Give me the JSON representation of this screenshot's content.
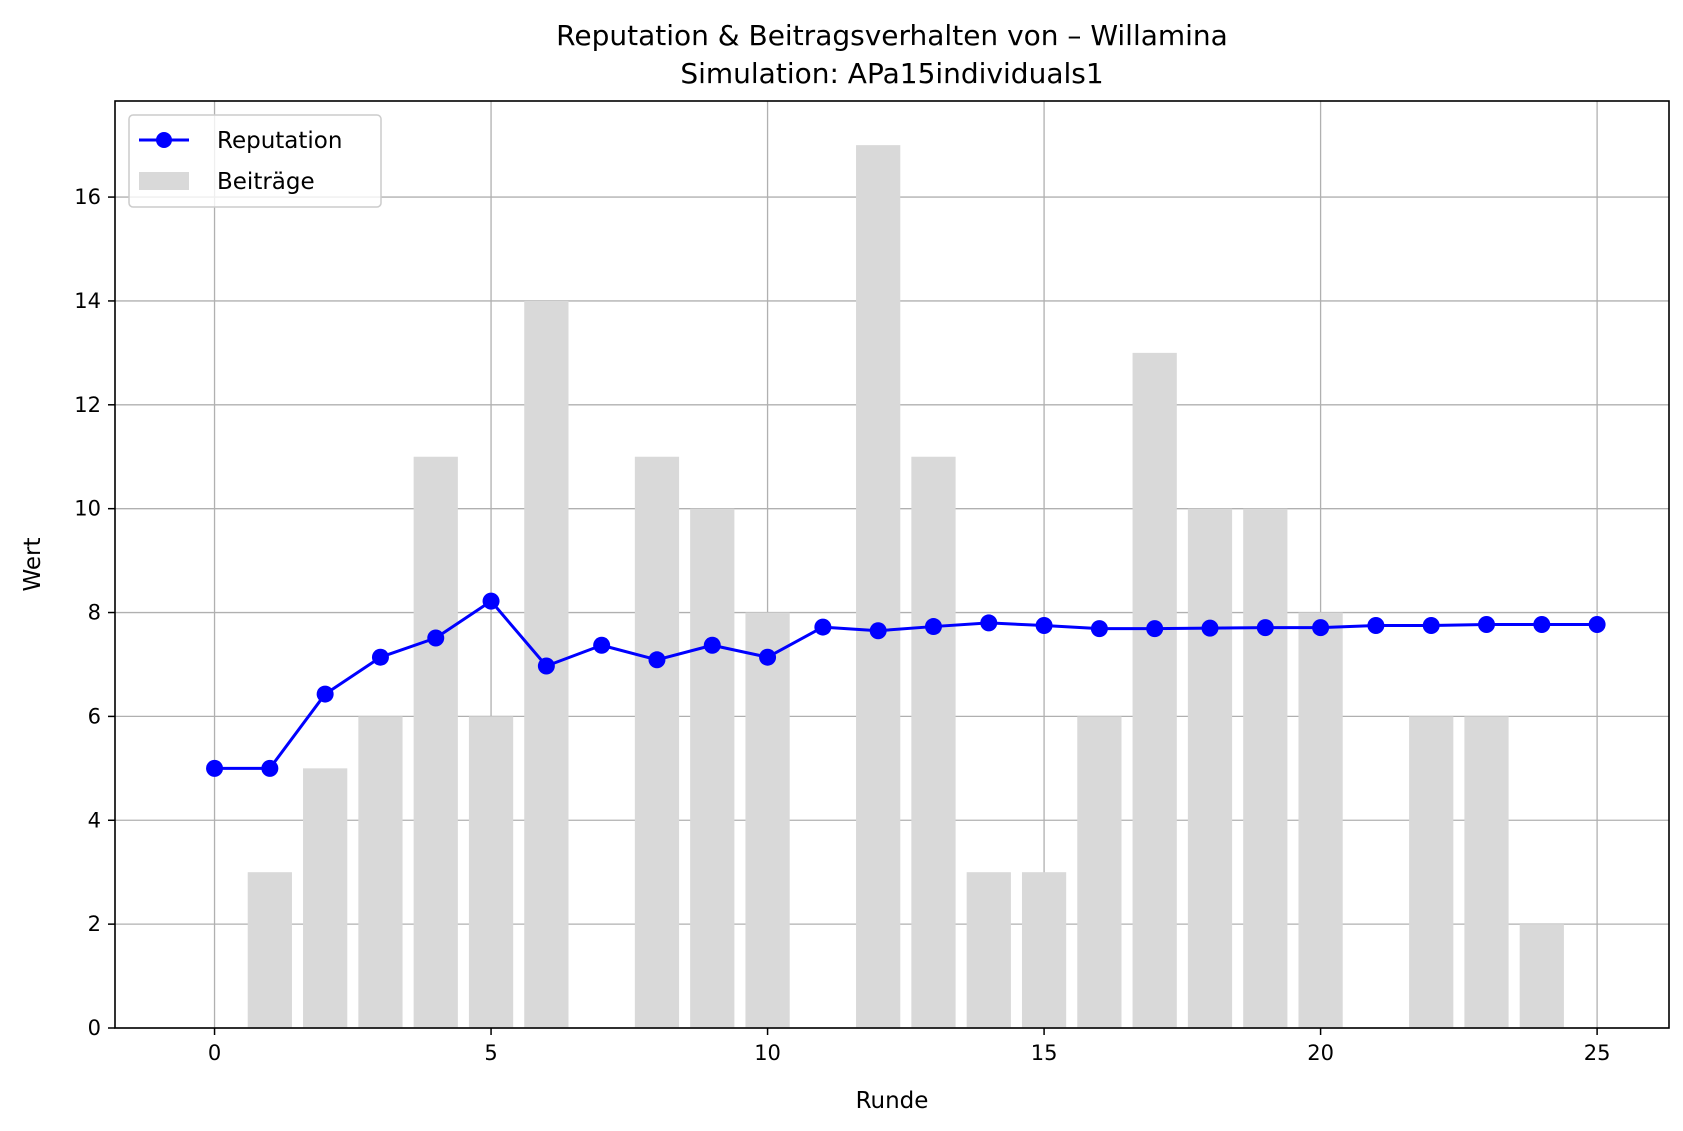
{
  "chart_data": {
    "type": "bar",
    "title": "Reputation & Beitragsverhalten von – Willamina",
    "subtitle": "Simulation: APa15individuals1",
    "xlabel": "Runde",
    "ylabel": "Wert",
    "xlim": [
      -1.8,
      26.3
    ],
    "ylim": [
      0,
      17.85
    ],
    "x_ticks": [
      0,
      5,
      10,
      15,
      20,
      25
    ],
    "y_ticks": [
      0,
      2,
      4,
      6,
      8,
      10,
      12,
      14,
      16
    ],
    "grid": true,
    "legend_position": "top-left",
    "series": [
      {
        "name": "Beiträge",
        "kind": "bar",
        "color": "#d9d9d9",
        "x": [
          1,
          2,
          3,
          4,
          5,
          6,
          8,
          9,
          10,
          12,
          13,
          14,
          15,
          16,
          17,
          18,
          19,
          20,
          22,
          23,
          24
        ],
        "values": [
          3,
          5,
          6,
          11,
          6,
          14,
          11,
          10,
          8,
          17,
          11,
          3,
          3,
          6,
          13,
          10,
          10,
          8,
          6,
          6,
          2
        ]
      },
      {
        "name": "Reputation",
        "kind": "line",
        "color": "#0000ff",
        "x": [
          0,
          1,
          2,
          3,
          4,
          5,
          6,
          7,
          8,
          9,
          10,
          11,
          12,
          13,
          14,
          15,
          16,
          17,
          18,
          19,
          20,
          21,
          22,
          23,
          24,
          25
        ],
        "values": [
          5.0,
          5.0,
          6.43,
          7.14,
          7.51,
          8.22,
          6.97,
          7.37,
          7.09,
          7.37,
          7.14,
          7.72,
          7.65,
          7.73,
          7.8,
          7.75,
          7.69,
          7.69,
          7.7,
          7.71,
          7.71,
          7.75,
          7.75,
          7.77,
          7.77,
          7.77
        ]
      }
    ]
  }
}
